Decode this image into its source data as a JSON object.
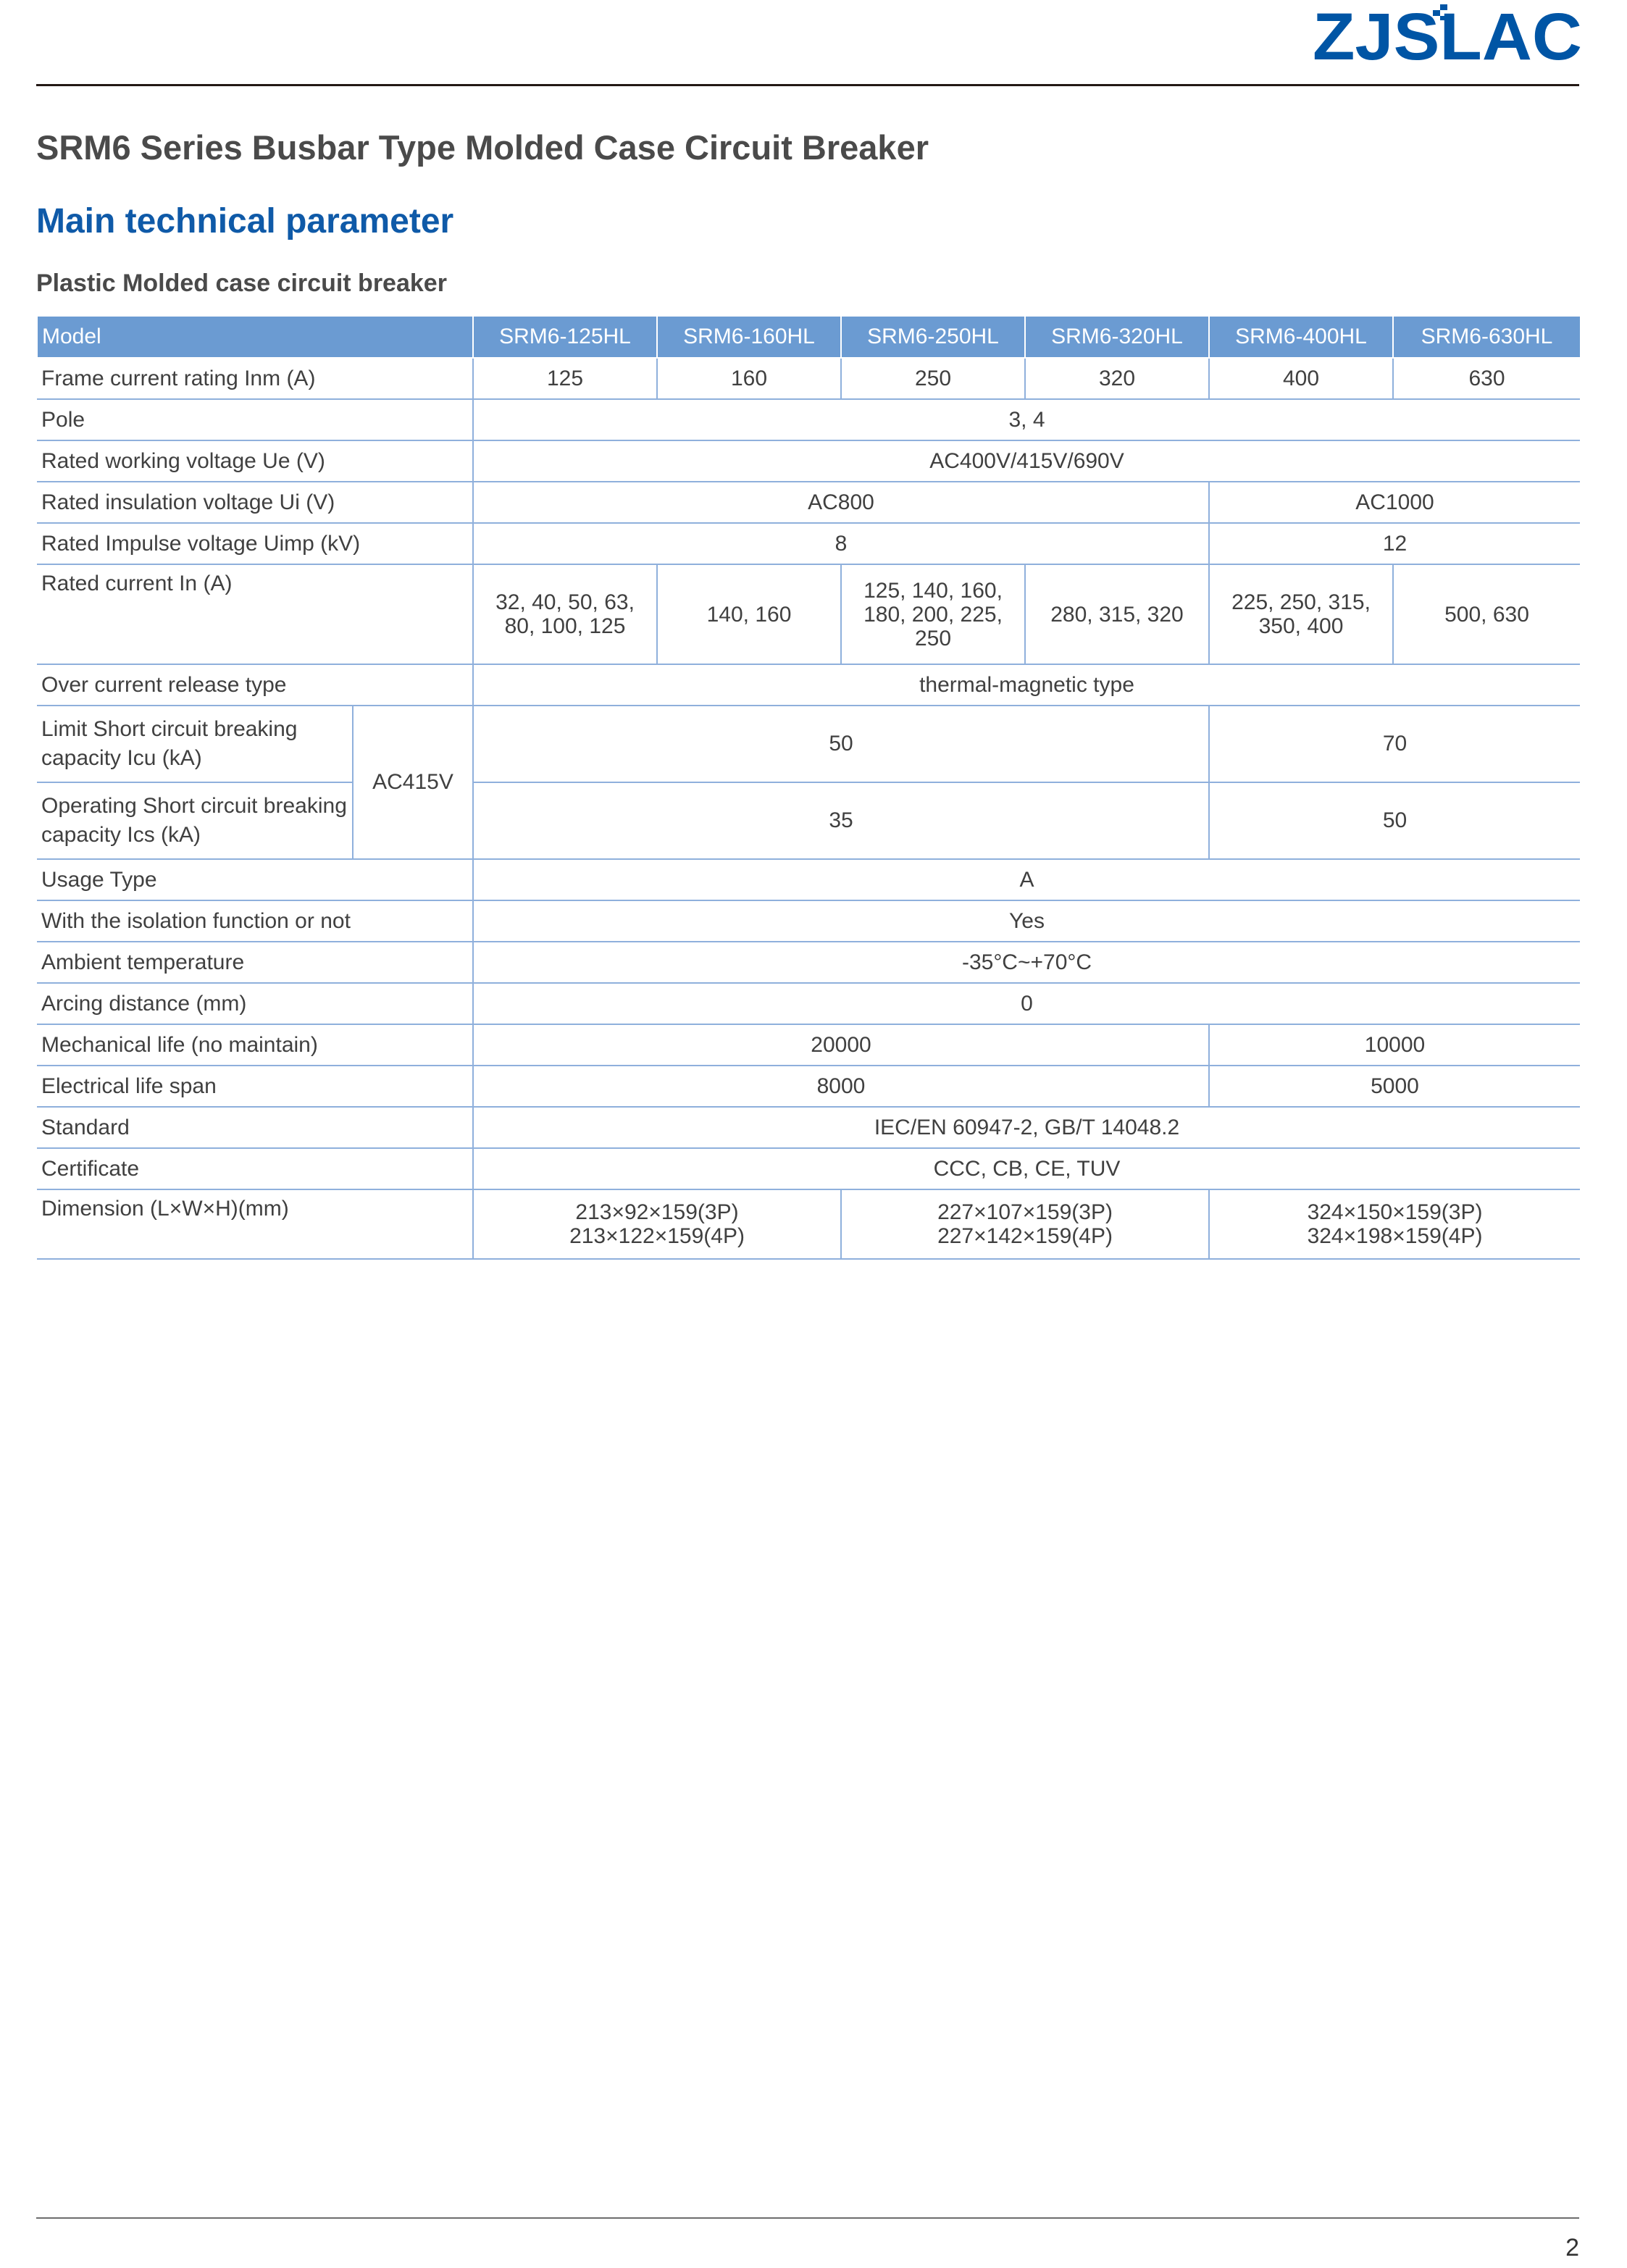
{
  "logo": {
    "text": "ZJSLAC",
    "color": "#0055a5"
  },
  "title": "SRM6 Series Busbar Type Molded Case Circuit Breaker",
  "section": "Main technical parameter",
  "subtitle": "Plastic Molded case circuit breaker",
  "colors": {
    "header_bg": "#6b9bd2",
    "section_blue": "#0f5aa8",
    "grid": "#8fb0dc"
  },
  "table": {
    "header": [
      "Model",
      "SRM6-125HL",
      "SRM6-160HL",
      "SRM6-250HL",
      "SRM6-320HL",
      "SRM6-400HL",
      "SRM6-630HL"
    ],
    "rows": [
      [
        {
          "t": "Frame current rating Inm (A)",
          "c": 2,
          "lbl": 1
        },
        {
          "t": "125"
        },
        {
          "t": "160"
        },
        {
          "t": "250"
        },
        {
          "t": "320"
        },
        {
          "t": "400"
        },
        {
          "t": "630"
        }
      ],
      [
        {
          "t": "Pole",
          "c": 2,
          "lbl": 1
        },
        {
          "t": "3, 4",
          "c": 6
        }
      ],
      [
        {
          "t": "Rated working voltage Ue (V)",
          "c": 2,
          "lbl": 1
        },
        {
          "t": "AC400V/415V/690V",
          "c": 6
        }
      ],
      [
        {
          "t": "Rated insulation voltage Ui (V)",
          "c": 2,
          "lbl": 1
        },
        {
          "t": "AC800",
          "c": 4
        },
        {
          "t": "AC1000",
          "c": 2
        }
      ],
      [
        {
          "t": "Rated Impulse voltage Uimp (kV)",
          "c": 2,
          "lbl": 1
        },
        {
          "t": "8",
          "c": 4
        },
        {
          "t": "12",
          "c": 2
        }
      ],
      [
        {
          "t": "Rated current In (A)",
          "c": 2,
          "lbl": 1,
          "top": 1
        },
        {
          "t": "32, 40, 50, 63, 80, 100, 125"
        },
        {
          "t": "140, 160"
        },
        {
          "t": "125, 140, 160, 180, 200, 225, 250"
        },
        {
          "t": "280, 315, 320"
        },
        {
          "t": "225, 250, 315, 350, 400"
        },
        {
          "t": "500, 630"
        }
      ],
      [
        {
          "t": "Over current release type",
          "c": 2,
          "lbl": 1
        },
        {
          "t": "thermal-magnetic type",
          "c": 6
        }
      ],
      [
        {
          "t": "Limit Short circuit breaking capacity Icu (kA)",
          "lbl": 1
        },
        {
          "t": "AC415V",
          "r": 2
        },
        {
          "t": "50",
          "c": 4
        },
        {
          "t": "70",
          "c": 2
        }
      ],
      [
        {
          "t": "Operating Short circuit breaking capacity Ics (kA)",
          "lbl": 1
        },
        {
          "t": "35",
          "c": 4
        },
        {
          "t": "50",
          "c": 2
        }
      ],
      [
        {
          "t": "Usage Type",
          "c": 2,
          "lbl": 1
        },
        {
          "t": "A",
          "c": 6
        }
      ],
      [
        {
          "t": "With the isolation function or not",
          "c": 2,
          "lbl": 1
        },
        {
          "t": "Yes",
          "c": 6
        }
      ],
      [
        {
          "t": "Ambient temperature",
          "c": 2,
          "lbl": 1
        },
        {
          "t": "-35°C~+70°C",
          "c": 6
        }
      ],
      [
        {
          "t": "Arcing distance (mm)",
          "c": 2,
          "lbl": 1
        },
        {
          "t": "0",
          "c": 6
        }
      ],
      [
        {
          "t": "Mechanical life (no maintain)",
          "c": 2,
          "lbl": 1
        },
        {
          "t": "20000",
          "c": 4
        },
        {
          "t": "10000",
          "c": 2
        }
      ],
      [
        {
          "t": "Electrical life span",
          "c": 2,
          "lbl": 1
        },
        {
          "t": "8000",
          "c": 4
        },
        {
          "t": "5000",
          "c": 2
        }
      ],
      [
        {
          "t": "Standard",
          "c": 2,
          "lbl": 1
        },
        {
          "t": "IEC/EN 60947-2, GB/T 14048.2",
          "c": 6
        }
      ],
      [
        {
          "t": "Certificate",
          "c": 2,
          "lbl": 1
        },
        {
          "t": "CCC, CB, CE, TUV",
          "c": 6
        }
      ],
      [
        {
          "t": "Dimension (L×W×H)(mm)",
          "c": 2,
          "lbl": 1,
          "top": 1
        },
        {
          "t": "213×92×159(3P)\n213×122×159(4P)",
          "c": 2
        },
        {
          "t": "227×107×159(3P)\n227×142×159(4P)",
          "c": 2
        },
        {
          "t": "324×150×159(3P)\n324×198×159(4P)",
          "c": 2
        }
      ]
    ]
  },
  "page_number": "2"
}
